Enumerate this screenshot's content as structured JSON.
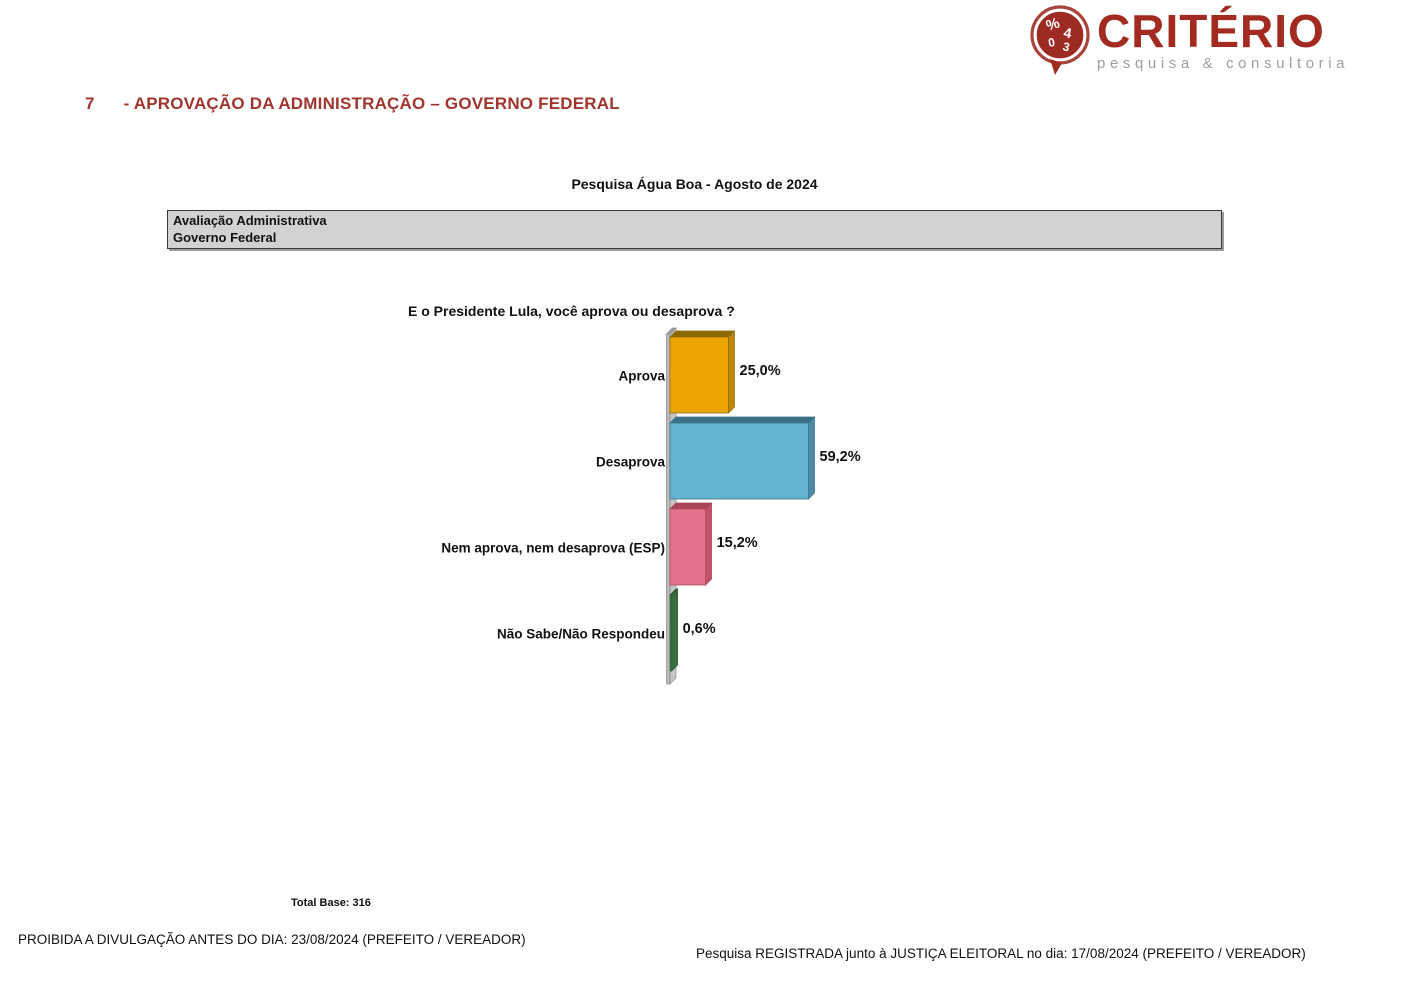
{
  "heading": {
    "number": "7",
    "title": "- APROVAÇÃO DA ADMINISTRAÇÃO – GOVERNO FEDERAL"
  },
  "logo": {
    "name": "CRITÉRIO",
    "tagline": "pesquisa & consultoria",
    "brand_color": "#A32A20",
    "icon_glyphs": [
      "%",
      "4",
      "0",
      "3"
    ]
  },
  "chart_data": {
    "type": "bar",
    "orientation": "horizontal",
    "title": "Pesquisa Água Boa - Agosto de 2024",
    "header_box_line1": "Avaliação Administrativa",
    "header_box_line2": "Governo Federal",
    "question": "E o Presidente Lula, você aprova ou desaprova ?",
    "categories": [
      "Aprova",
      "Desaprova",
      "Nem aprova, nem desaprova (ESP)",
      "Não Sabe/Não Respondeu"
    ],
    "values": [
      25.0,
      59.2,
      15.2,
      0.6
    ],
    "value_labels": [
      "25,0%",
      "59,2%",
      "15,2%",
      "0,6%"
    ],
    "xlim": [
      0,
      100
    ],
    "grid": false,
    "legend": false,
    "effect": "3d",
    "bar_colors": [
      {
        "front": "#EAA500",
        "top": "#8C6A04",
        "side": "#BE8609"
      },
      {
        "front": "#63B4CE",
        "top": "#3A7088",
        "side": "#4C8CA6"
      },
      {
        "front": "#E5728A",
        "top": "#AC4458",
        "side": "#C25266"
      },
      {
        "front": "#47804B",
        "top": "#2E5B33",
        "side": "#3A6C40"
      }
    ],
    "axis_wall_color": "#B9B9B9",
    "label_color": "#111111",
    "total_base": "Total Base: 316"
  },
  "footer": {
    "left": "PROIBIDA A DIVULGAÇÃO ANTES DO DIA: 23/08/2024 (PREFEITO / VEREADOR)",
    "right": "Pesquisa REGISTRADA junto à JUSTIÇA ELEITORAL no dia: 17/08/2024 (PREFEITO / VEREADOR)"
  }
}
